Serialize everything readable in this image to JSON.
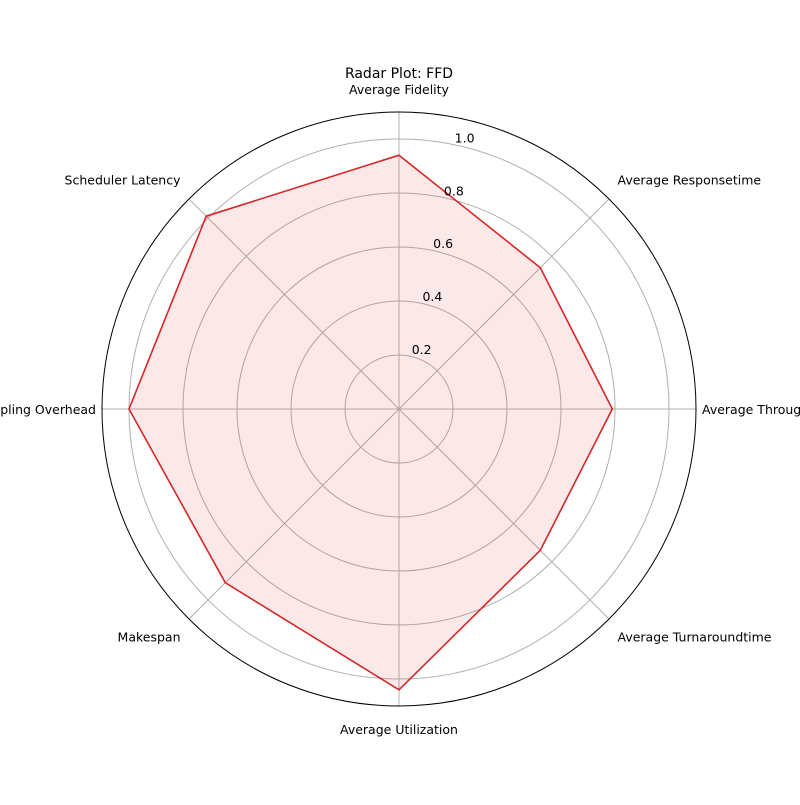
{
  "chart_data": {
    "type": "radar",
    "title": "Radar Plot: FFD",
    "axes": [
      "Average Fidelity",
      "Average Responsetime",
      "Average Throughput",
      "Average Turnaroundtime",
      "Average Utilization",
      "Makespan",
      "Sampling Overhead",
      "Scheduler Latency"
    ],
    "rlim": [
      0,
      1.1
    ],
    "rticks": [
      0.2,
      0.4,
      0.6,
      0.8,
      1.0
    ],
    "rtick_labels": [
      "0.2",
      "0.4",
      "0.6",
      "0.8",
      "1.0"
    ],
    "grid": true,
    "series": [
      {
        "values": [
          0.94,
          0.74,
          0.79,
          0.74,
          1.04,
          0.91,
          1.0,
          1.01
        ],
        "line_color": "#d62728",
        "fill_color": "#d62728",
        "fill_opacity": 0.1
      }
    ]
  }
}
